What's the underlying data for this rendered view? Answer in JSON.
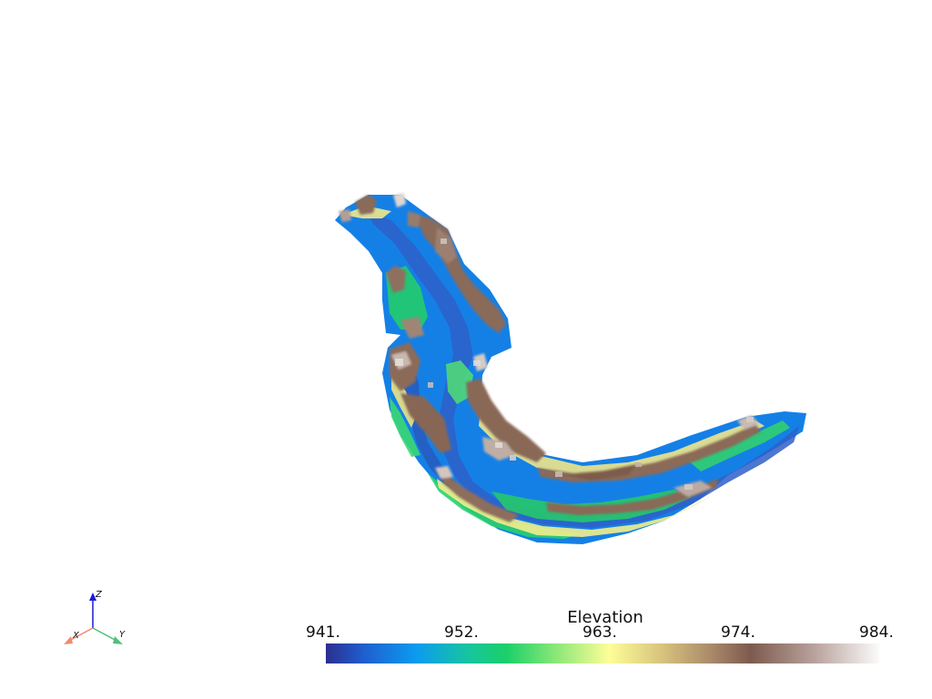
{
  "scalar_bar": {
    "title": "Elevation",
    "tick_labels": [
      "941.",
      "952.",
      "963.",
      "974.",
      "984."
    ],
    "colormap": [
      {
        "value": 941,
        "color": "#2b2f8e"
      },
      {
        "value": 944,
        "color": "#1f5fd0"
      },
      {
        "value": 948,
        "color": "#0b9bf0"
      },
      {
        "value": 952,
        "color": "#17c4a0"
      },
      {
        "value": 955,
        "color": "#1ad06a"
      },
      {
        "value": 959,
        "color": "#8ee878"
      },
      {
        "value": 963,
        "color": "#fdfe98"
      },
      {
        "value": 967,
        "color": "#d9c57e"
      },
      {
        "value": 971,
        "color": "#a8896a"
      },
      {
        "value": 974,
        "color": "#7d5a4e"
      },
      {
        "value": 979,
        "color": "#b9a39d"
      },
      {
        "value": 984,
        "color": "#fbfbfb"
      }
    ]
  },
  "orientation_axes": {
    "x_label": "X",
    "y_label": "Y",
    "z_label": "Z",
    "x_color": "#f08a70",
    "y_color": "#4fc07a",
    "z_color": "#1a1ad8"
  }
}
